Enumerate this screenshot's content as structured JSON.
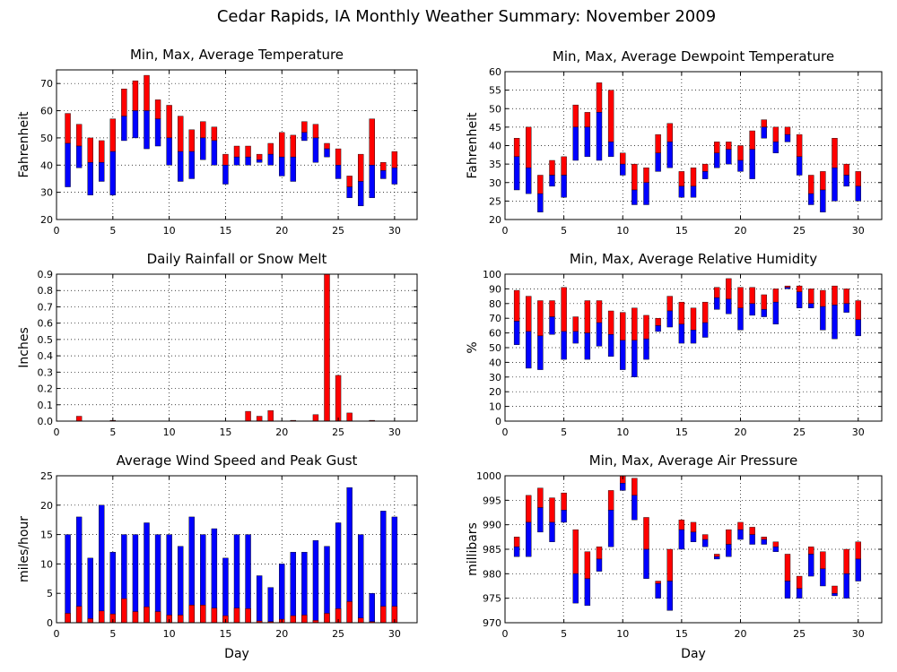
{
  "title": "Cedar Rapids, IA Monthly Weather Summary: November 2009",
  "colors": {
    "upper": "#ff0000",
    "lower": "#0000ff",
    "frame": "#000000",
    "grid": "#000000"
  },
  "chart_data": [
    {
      "id": "temp",
      "type": "bar",
      "title": "Min, Max, Average Temperature",
      "xlabel": "",
      "ylabel": "Fahrenheit",
      "xlim": [
        0,
        32
      ],
      "ylim": [
        20,
        75
      ],
      "xticks": [
        0,
        5,
        10,
        15,
        20,
        25,
        30
      ],
      "yticks": [
        20,
        30,
        40,
        50,
        60,
        70
      ],
      "grid": true,
      "series": [
        {
          "x": [
            1,
            2,
            3,
            4,
            5,
            6,
            7,
            8,
            9,
            10,
            11,
            12,
            13,
            14,
            15,
            16,
            17,
            18,
            19,
            20,
            21,
            22,
            23,
            24,
            25,
            26,
            27,
            28,
            29,
            30
          ],
          "min": [
            32,
            39,
            29,
            34,
            29,
            49,
            50,
            46,
            47,
            40,
            34,
            35,
            42,
            40,
            33,
            40,
            40,
            41,
            40,
            36,
            34,
            49,
            41,
            43,
            35,
            28,
            25,
            28,
            35,
            33
          ],
          "avg": [
            48,
            47,
            41,
            41,
            45,
            58,
            60,
            60,
            57,
            50,
            45,
            45,
            50,
            49,
            40,
            43,
            43,
            42,
            44,
            43,
            43,
            52,
            50,
            46,
            40,
            32,
            34,
            40,
            38,
            39
          ],
          "max": [
            59,
            55,
            50,
            49,
            57,
            68,
            71,
            73,
            64,
            62,
            58,
            53,
            56,
            54,
            44,
            47,
            47,
            44,
            48,
            52,
            51,
            56,
            55,
            48,
            46,
            36,
            44,
            57,
            41,
            45
          ]
        }
      ]
    },
    {
      "id": "dewpoint",
      "type": "bar",
      "title": "Min, Max, Average Dewpoint Temperature",
      "xlabel": "",
      "ylabel": "Fahrenheit",
      "xlim": [
        0,
        32
      ],
      "ylim": [
        20,
        60
      ],
      "xticks": [
        0,
        5,
        10,
        15,
        20,
        25,
        30
      ],
      "yticks": [
        20,
        25,
        30,
        35,
        40,
        45,
        50,
        55,
        60
      ],
      "grid": true,
      "series": [
        {
          "x": [
            1,
            2,
            3,
            4,
            5,
            6,
            7,
            8,
            9,
            10,
            11,
            12,
            13,
            14,
            15,
            16,
            17,
            18,
            19,
            20,
            21,
            22,
            23,
            24,
            25,
            26,
            27,
            28,
            29,
            30
          ],
          "min": [
            28,
            27,
            22,
            29,
            26,
            36,
            37,
            36,
            37,
            32,
            24,
            24,
            33,
            34,
            26,
            26,
            31,
            34,
            35,
            33,
            31,
            42,
            38,
            41,
            32,
            24,
            22,
            25,
            29,
            25
          ],
          "avg": [
            37,
            34,
            27,
            32,
            32,
            45,
            45,
            49,
            41,
            35,
            28,
            30,
            38,
            41,
            29,
            29,
            33,
            38,
            39,
            36,
            39,
            45,
            41,
            43,
            37,
            27,
            28,
            34,
            32,
            29
          ],
          "max": [
            42,
            45,
            32,
            36,
            37,
            51,
            49,
            57,
            55,
            38,
            35,
            34,
            43,
            46,
            33,
            34,
            35,
            41,
            41,
            40,
            44,
            47,
            45,
            45,
            43,
            32,
            33,
            42,
            35,
            33
          ]
        }
      ]
    },
    {
      "id": "precip",
      "type": "bar",
      "title": "Daily Rainfall or Snow Melt",
      "xlabel": "",
      "ylabel": "Inches",
      "xlim": [
        0,
        32
      ],
      "ylim": [
        0,
        0.9
      ],
      "xticks": [
        0,
        5,
        10,
        15,
        20,
        25,
        30
      ],
      "yticks": [
        0,
        0.1,
        0.2,
        0.3,
        0.4,
        0.5,
        0.6,
        0.7,
        0.8,
        0.9
      ],
      "ytick_labels": [
        "0.0",
        "0.1",
        "0.2",
        "0.3",
        "0.4",
        "0.5",
        "0.6",
        "0.7",
        "0.8",
        "0.9"
      ],
      "grid": true,
      "series": [
        {
          "x": [
            1,
            2,
            3,
            4,
            5,
            6,
            7,
            8,
            9,
            10,
            11,
            12,
            13,
            14,
            15,
            16,
            17,
            18,
            19,
            20,
            21,
            22,
            23,
            24,
            25,
            26,
            27,
            28,
            29,
            30
          ],
          "values": [
            0,
            0.03,
            0,
            0,
            0.005,
            0,
            0,
            0,
            0,
            0,
            0,
            0,
            0,
            0,
            0,
            0,
            0.06,
            0.03,
            0.065,
            0,
            0.005,
            0,
            0.04,
            0.91,
            0.28,
            0.05,
            0,
            0.005,
            0,
            0
          ]
        }
      ]
    },
    {
      "id": "rh",
      "type": "bar",
      "title": "Min, Max, Average Relative Humidity",
      "xlabel": "",
      "ylabel": "%",
      "xlim": [
        0,
        32
      ],
      "ylim": [
        0,
        100
      ],
      "xticks": [
        0,
        5,
        10,
        15,
        20,
        25,
        30
      ],
      "yticks": [
        0,
        10,
        20,
        30,
        40,
        50,
        60,
        70,
        80,
        90,
        100
      ],
      "grid": true,
      "series": [
        {
          "x": [
            1,
            2,
            3,
            4,
            5,
            6,
            7,
            8,
            9,
            10,
            11,
            12,
            13,
            14,
            15,
            16,
            17,
            18,
            19,
            20,
            21,
            22,
            23,
            24,
            25,
            26,
            27,
            28,
            29,
            30
          ],
          "min": [
            52,
            36,
            35,
            59,
            42,
            53,
            42,
            51,
            44,
            35,
            30,
            42,
            61,
            64,
            53,
            53,
            57,
            76,
            73,
            62,
            72,
            71,
            66,
            90,
            77,
            77,
            62,
            56,
            74,
            58
          ],
          "avg": [
            68,
            61,
            58,
            71,
            61,
            61,
            60,
            67,
            59,
            55,
            55,
            56,
            65,
            75,
            66,
            62,
            67,
            84,
            83,
            77,
            80,
            76,
            81,
            91,
            88,
            80,
            78,
            79,
            80,
            69
          ],
          "max": [
            89,
            85,
            82,
            82,
            91,
            71,
            82,
            82,
            75,
            74,
            77,
            72,
            70,
            85,
            81,
            77,
            81,
            91,
            97,
            91,
            91,
            86,
            90,
            92,
            92,
            90,
            89,
            92,
            90,
            82
          ]
        }
      ]
    },
    {
      "id": "wind",
      "type": "bar",
      "title": "Average Wind Speed and Peak Gust",
      "xlabel": "Day",
      "ylabel": "miles/hour",
      "xlim": [
        0,
        32
      ],
      "ylim": [
        0,
        25
      ],
      "xticks": [
        0,
        5,
        10,
        15,
        20,
        25,
        30
      ],
      "yticks": [
        0,
        5,
        10,
        15,
        20,
        25
      ],
      "grid": true,
      "series": [
        {
          "name": "",
          "x": [
            1,
            2,
            3,
            4,
            5,
            6,
            7,
            8,
            9,
            10,
            11,
            12,
            13,
            14,
            15,
            16,
            17,
            18,
            19,
            20,
            21,
            22,
            23,
            24,
            25,
            26,
            27,
            28,
            29,
            30
          ],
          "gust": [
            15,
            18,
            11,
            20,
            12,
            15,
            15,
            17,
            15,
            15,
            13,
            18,
            15,
            16,
            11,
            15,
            15,
            8,
            6,
            10,
            12,
            12,
            14,
            13,
            17,
            23,
            15,
            5,
            19,
            18
          ],
          "avg": [
            1.6,
            2.8,
            0.7,
            2.0,
            1.5,
            4.1,
            1.9,
            2.7,
            1.9,
            1.3,
            1.3,
            3.0,
            3.0,
            2.5,
            1.2,
            2.5,
            2.4,
            0.3,
            0.2,
            0.6,
            1.2,
            1.3,
            0.4,
            1.6,
            2.4,
            3.6,
            0.8,
            0.2,
            2.8,
            2.8
          ]
        }
      ]
    },
    {
      "id": "pressure",
      "type": "bar",
      "title": "Min, Max, Average Air Pressure",
      "xlabel": "Day",
      "ylabel": "millibars",
      "xlim": [
        0,
        32
      ],
      "ylim": [
        970,
        1000
      ],
      "xticks": [
        0,
        5,
        10,
        15,
        20,
        25,
        30
      ],
      "yticks": [
        970,
        975,
        980,
        985,
        990,
        995,
        1000
      ],
      "grid": true,
      "series": [
        {
          "x": [
            1,
            2,
            3,
            4,
            5,
            6,
            7,
            8,
            9,
            10,
            11,
            12,
            13,
            14,
            15,
            16,
            17,
            18,
            19,
            20,
            21,
            22,
            23,
            24,
            25,
            26,
            27,
            28,
            29,
            30
          ],
          "min": [
            983.5,
            983.5,
            988.5,
            986.5,
            990.5,
            974,
            973.5,
            980.5,
            985.5,
            997,
            991,
            979,
            975,
            972.5,
            985,
            986.5,
            985.5,
            983,
            983.5,
            987,
            986,
            986,
            984.5,
            975,
            975,
            979.5,
            977.5,
            975.5,
            975,
            978.5
          ],
          "avg": [
            985.5,
            990.5,
            993.5,
            990.5,
            993,
            980,
            979,
            983,
            993,
            998.5,
            996,
            985,
            978,
            978.5,
            989,
            988.5,
            987,
            983.5,
            986,
            989,
            988,
            987,
            985.5,
            978.5,
            977,
            984,
            981,
            976,
            980,
            983
          ],
          "max": [
            987.5,
            996,
            997.5,
            995.5,
            996.5,
            989,
            984.5,
            985.5,
            997,
            1000,
            999.5,
            991.5,
            978.5,
            985,
            991,
            990.5,
            988,
            984,
            989,
            990.5,
            989.5,
            987.5,
            986.5,
            984,
            979.5,
            985.5,
            984.5,
            977.5,
            985,
            986.5
          ]
        }
      ]
    }
  ]
}
